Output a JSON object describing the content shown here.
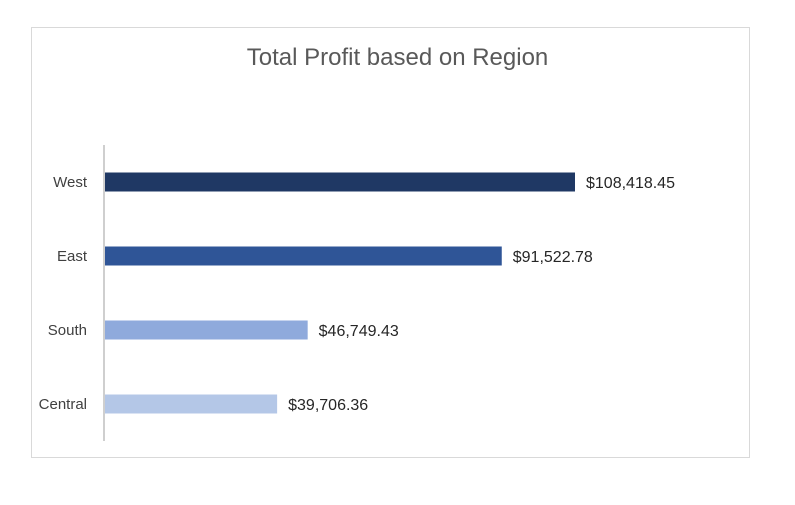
{
  "chart_data": {
    "type": "bar",
    "orientation": "horizontal",
    "title": "Total Profit based on Region",
    "categories": [
      "West",
      "East",
      "South",
      "Central"
    ],
    "values": [
      108418.45,
      91522.78,
      46749.43,
      39706.36
    ],
    "data_labels": [
      "$108,418.45",
      "$91,522.78",
      "$46,749.43",
      "$39,706.36"
    ],
    "bar_colors": [
      "#1f3864",
      "#2f5597",
      "#8faadc",
      "#b4c7e7"
    ],
    "xlabel": "",
    "ylabel": "",
    "grid": false,
    "legend": "none"
  }
}
